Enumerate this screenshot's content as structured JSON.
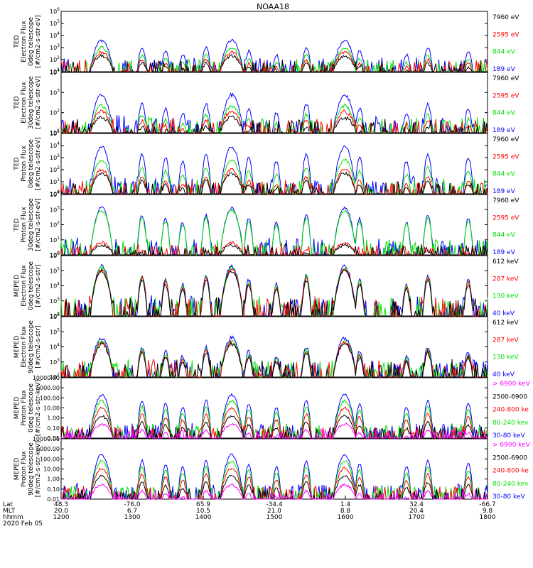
{
  "title": "NOAA18",
  "colors": {
    "black": "#000000",
    "red": "#ff0000",
    "green": "#00e000",
    "blue": "#0000ff",
    "magenta": "#ff00ff"
  },
  "chart_data": {
    "type": "line",
    "title": "NOAA18",
    "date_label": "2020 Feb 05",
    "x_axis": {
      "row_labels": [
        "Lat",
        "MLT",
        "hhmm"
      ],
      "ticks": [
        {
          "lat": "48.3",
          "mlt": "20.0",
          "hhmm": "1200"
        },
        {
          "lat": "-76.0",
          "mlt": "6.7",
          "hhmm": "1300"
        },
        {
          "lat": "65.9",
          "mlt": "10.5",
          "hhmm": "1400"
        },
        {
          "lat": "-34.4",
          "mlt": "21.0",
          "hhmm": "1500"
        },
        {
          "lat": "1.4",
          "mlt": "8.8",
          "hhmm": "1600"
        },
        {
          "lat": "32.4",
          "mlt": "20.4",
          "hhmm": "1700"
        },
        {
          "lat": "-66.7",
          "mlt": "9.8",
          "hhmm": "1800"
        }
      ]
    },
    "panels": [
      {
        "ylabel": [
          "TED",
          "Electron Flux",
          "0deg telescope",
          "[#/cm2-s-str-eV]"
        ],
        "ylog": [
          1,
          6
        ],
        "yticks": [
          "10^1",
          "10^2",
          "10^3",
          "10^4",
          "10^5",
          "10^6"
        ],
        "legend": [
          {
            "text": "7960 eV",
            "color": "black"
          },
          {
            "text": "2595 eV",
            "color": "red"
          },
          {
            "text": "844 eV",
            "color": "green"
          },
          {
            "text": "189 eV",
            "color": "blue"
          }
        ],
        "series_peak_log": {
          "black": 2.3,
          "red": 2.6,
          "green": 3.0,
          "blue": 3.6
        }
      },
      {
        "ylabel": [
          "TED",
          "Electron Flux",
          "30deg telescope",
          "[#/cm2-s-str-eV]"
        ],
        "ylog": [
          1,
          5
        ],
        "yticks": [
          "10^1",
          "10^2",
          "10^3",
          "10^4"
        ],
        "legend": [
          {
            "text": "7960 eV",
            "color": "black"
          },
          {
            "text": "2595 eV",
            "color": "red"
          },
          {
            "text": "844 eV",
            "color": "green"
          },
          {
            "text": "189 eV",
            "color": "blue"
          }
        ],
        "series_peak_log": {
          "black": 2.0,
          "red": 2.4,
          "green": 2.8,
          "blue": 3.5
        }
      },
      {
        "ylabel": [
          "TED",
          "Proton Flux",
          "0deg telescope",
          "[#/cm2-s-str-eV]"
        ],
        "ylog": [
          0,
          5
        ],
        "yticks": [
          "10^0",
          "10^1",
          "10^2",
          "10^3",
          "10^4",
          "10^5"
        ],
        "legend": [
          {
            "text": "7960 eV",
            "color": "black"
          },
          {
            "text": "2595 eV",
            "color": "red"
          },
          {
            "text": "844 eV",
            "color": "green"
          },
          {
            "text": "189 eV",
            "color": "blue"
          }
        ],
        "series_peak_log": {
          "black": 1.7,
          "red": 2.0,
          "green": 2.8,
          "blue": 3.9
        }
      },
      {
        "ylabel": [
          "TED",
          "Proton Flux",
          "30deg telescope",
          "[#/cm2-s-str-eV]"
        ],
        "ylog": [
          0,
          5
        ],
        "yticks": [
          "10^0",
          "10^1",
          "10^2",
          "10^3",
          "10^4"
        ],
        "legend": [
          {
            "text": "7960 eV",
            "color": "black"
          },
          {
            "text": "2595 eV",
            "color": "red"
          },
          {
            "text": "844 eV",
            "color": "green"
          },
          {
            "text": "189 eV",
            "color": "blue"
          }
        ],
        "series_peak_log": {
          "black": 0.8,
          "red": 1.0,
          "green": 3.7,
          "blue": 3.9
        }
      },
      {
        "ylabel": [
          "MEPED",
          "Electron Flux",
          "0deg telescope",
          "[#/cm2-s-str]"
        ],
        "ylog": [
          2,
          6
        ],
        "yticks": [
          "10^2",
          "10^3",
          "10^4",
          "10^5",
          "10^6"
        ],
        "legend": [
          {
            "text": "612 keV",
            "color": "black"
          },
          {
            "text": "287 keV",
            "color": "red"
          },
          {
            "text": "130 keV",
            "color": "green"
          },
          {
            "text": "40 keV",
            "color": "blue"
          }
        ],
        "series_peak_log": {
          "black": 5.0,
          "red": 5.1,
          "green": 5.2,
          "blue": 5.3
        }
      },
      {
        "ylabel": [
          "MEPED",
          "Electron Flux",
          "90deg telescope",
          "[#/cm2-s-str]"
        ],
        "ylog": [
          2,
          6
        ],
        "yticks": [
          "10^2",
          "10^3",
          "10^4",
          "10^5",
          "10^6"
        ],
        "legend": [
          {
            "text": "612 keV",
            "color": "black"
          },
          {
            "text": "287 keV",
            "color": "red"
          },
          {
            "text": "130 keV",
            "color": "green"
          },
          {
            "text": "40 keV",
            "color": "blue"
          }
        ],
        "series_peak_log": {
          "black": 4.2,
          "red": 4.3,
          "green": 4.4,
          "blue": 4.6
        }
      },
      {
        "ylabel": [
          "MEPED",
          "Proton Flux",
          "0deg telescope",
          "[#/cm2-s-str-keV]"
        ],
        "ylog": [
          -2,
          4
        ],
        "yticks": [
          "0.01",
          "0.10",
          "1.00",
          "10.00",
          "100.00",
          "1000.00",
          "10000.00"
        ],
        "legend": [
          {
            "text": "> 6900 keV",
            "color": "magenta"
          },
          {
            "text": "2500-6900",
            "color": "black"
          },
          {
            "text": "240-800 ke",
            "color": "red"
          },
          {
            "text": "80-240 kev",
            "color": "green"
          },
          {
            "text": "30-80 keV",
            "color": "blue"
          }
        ],
        "series_peak_log": {
          "magenta": -0.6,
          "black": 0.2,
          "red": 1.0,
          "green": 1.7,
          "blue": 2.3
        }
      },
      {
        "ylabel": [
          "MEPED",
          "Proton Flux",
          "90deg telescope",
          "[#/cm2-s-str-keV]"
        ],
        "ylog": [
          -2,
          4
        ],
        "yticks": [
          "0.01",
          "0.10",
          "1.00",
          "10.00",
          "100.00",
          "1000.00",
          "10000.00"
        ],
        "legend": [
          {
            "text": "> 6900 keV",
            "color": "magenta"
          },
          {
            "text": "2500-6900",
            "color": "black"
          },
          {
            "text": "240-800 ke",
            "color": "red"
          },
          {
            "text": "80-240 kev",
            "color": "green"
          },
          {
            "text": "30-80 keV",
            "color": "blue"
          }
        ],
        "series_peak_log": {
          "magenta": -0.6,
          "black": 0.3,
          "red": 1.1,
          "green": 1.8,
          "blue": 2.4
        }
      }
    ]
  }
}
